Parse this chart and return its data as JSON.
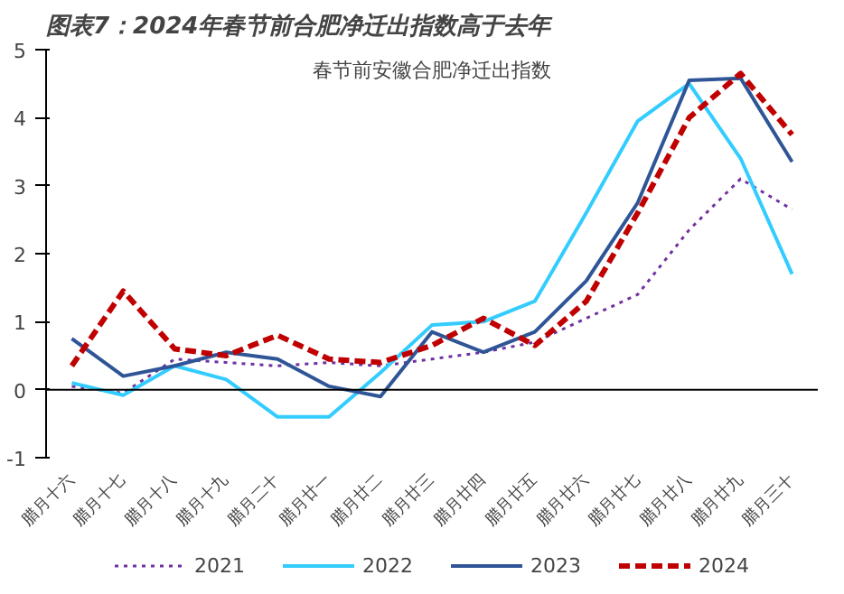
{
  "chart_data": {
    "type": "line",
    "title": "图表7：2024年春节前合肥净迁出指数高于去年",
    "subtitle": "春节前安徽合肥净迁出指数",
    "categories": [
      "腊月十六",
      "腊月十七",
      "腊月十八",
      "腊月十九",
      "腊月二十",
      "腊月廿一",
      "腊月廿二",
      "腊月廿三",
      "腊月廿四",
      "腊月廿五",
      "腊月廿六",
      "腊月廿七",
      "腊月廿八",
      "腊月廿九",
      "腊月三十"
    ],
    "series": [
      {
        "name": "2021",
        "color": "#7030a0",
        "line_style": "dotted",
        "values": [
          0.05,
          -0.05,
          0.45,
          0.4,
          0.35,
          0.4,
          0.35,
          0.45,
          0.55,
          0.7,
          1.05,
          1.4,
          2.35,
          3.1,
          2.65
        ]
      },
      {
        "name": "2022",
        "color": "#33ccff",
        "line_style": "solid",
        "values": [
          0.1,
          -0.08,
          0.35,
          0.15,
          -0.4,
          -0.4,
          0.25,
          0.95,
          1.0,
          1.3,
          2.6,
          3.95,
          4.5,
          3.4,
          1.7
        ]
      },
      {
        "name": "2023",
        "color": "#2f5597",
        "line_style": "solid",
        "values": [
          0.75,
          0.2,
          0.35,
          0.55,
          0.45,
          0.05,
          -0.1,
          0.85,
          0.55,
          0.85,
          1.6,
          2.75,
          4.55,
          4.58,
          3.35
        ]
      },
      {
        "name": "2024",
        "color": "#c00000",
        "line_style": "dashed",
        "values": [
          0.35,
          1.45,
          0.6,
          0.5,
          0.8,
          0.45,
          0.4,
          0.65,
          1.05,
          0.65,
          1.3,
          2.6,
          4.0,
          4.65,
          3.75
        ]
      }
    ],
    "ylim": [
      -1,
      5
    ],
    "yticks": [
      -1,
      0,
      1,
      2,
      3,
      4,
      5
    ],
    "legend": "bottom",
    "marker": "none"
  }
}
